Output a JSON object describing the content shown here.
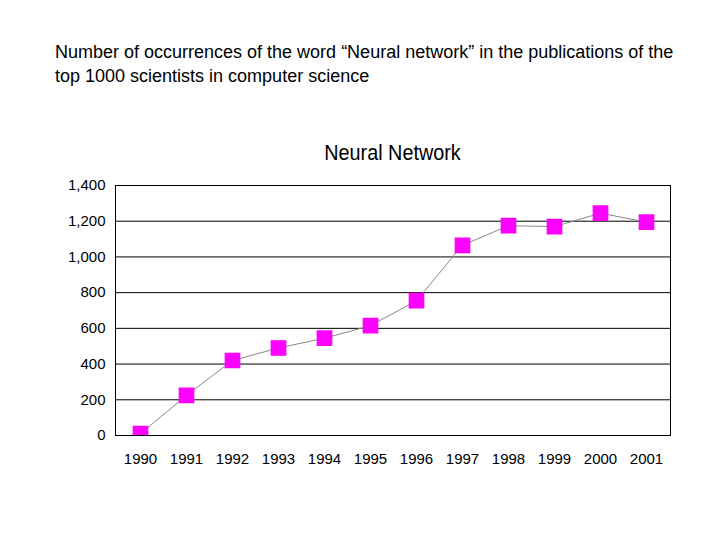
{
  "chart_data": {
    "type": "line",
    "subtitle": "Number of occurrences of the word “Neural network” in the publications of the top 1000 scientists in computer science",
    "title": "Neural Network",
    "categories": [
      "1990",
      "1991",
      "1992",
      "1993",
      "1994",
      "1995",
      "1996",
      "1997",
      "1998",
      "1999",
      "2000",
      "2001"
    ],
    "values": [
      10,
      225,
      420,
      490,
      545,
      615,
      755,
      1065,
      1175,
      1170,
      1245,
      1195
    ],
    "color": "#ff00ff",
    "marker": "square",
    "line_style": "solid",
    "ylim": [
      0,
      1400
    ],
    "yticks": [
      0,
      200,
      400,
      600,
      800,
      1000,
      1200,
      1400
    ],
    "grid": true
  }
}
